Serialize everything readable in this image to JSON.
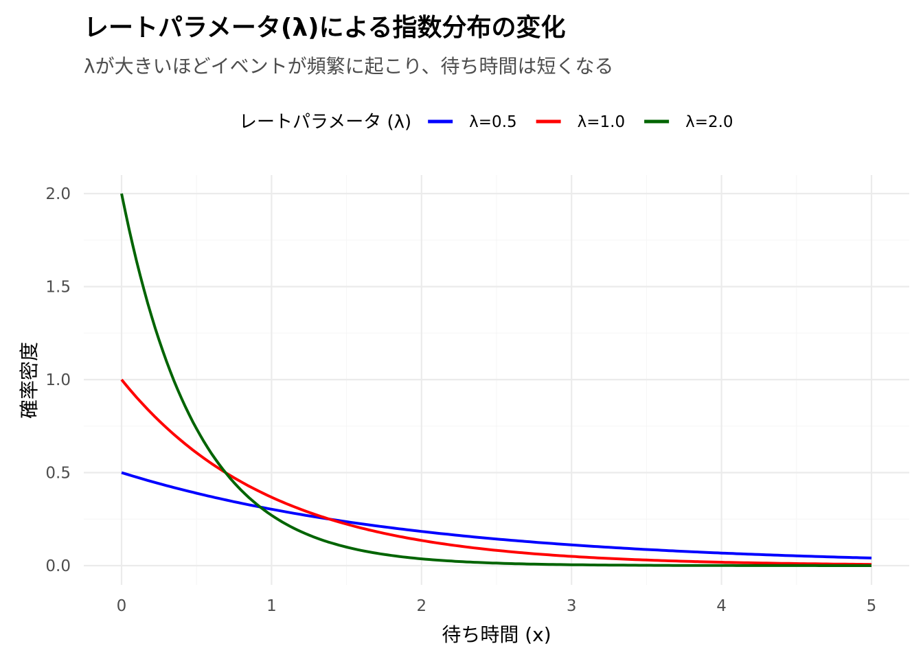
{
  "chart_data": {
    "type": "line",
    "title": "レートパラメータ(λ)による指数分布の変化",
    "subtitle": "λが大きいほどイベントが頻繁に起こり、待ち時間は短くなる",
    "xlabel": "待ち時間 (x)",
    "ylabel": "確率密度",
    "xlim": [
      0,
      5
    ],
    "ylim": [
      0,
      2.0
    ],
    "x_ticks": [
      "0",
      "1",
      "2",
      "3",
      "4",
      "5"
    ],
    "y_ticks": [
      "0.0",
      "0.5",
      "1.0",
      "1.5",
      "2.0"
    ],
    "grid": true,
    "legend": {
      "title": "レートパラメータ (λ)",
      "position": "top"
    },
    "x": [
      0,
      0.25,
      0.5,
      0.75,
      1.0,
      1.25,
      1.5,
      1.75,
      2.0,
      2.25,
      2.5,
      2.75,
      3.0,
      3.25,
      3.5,
      3.75,
      4.0,
      4.25,
      4.5,
      4.75,
      5.0
    ],
    "series": [
      {
        "name": "λ=0.5",
        "color": "#0000ff",
        "values": [
          0.5,
          0.441,
          0.389,
          0.344,
          0.303,
          0.268,
          0.236,
          0.208,
          0.184,
          0.162,
          0.143,
          0.126,
          0.112,
          0.098,
          0.087,
          0.077,
          0.068,
          0.06,
          0.053,
          0.046,
          0.041
        ]
      },
      {
        "name": "λ=1.0",
        "color": "#ff0000",
        "values": [
          1.0,
          0.779,
          0.607,
          0.472,
          0.368,
          0.287,
          0.223,
          0.174,
          0.135,
          0.105,
          0.082,
          0.064,
          0.05,
          0.039,
          0.03,
          0.024,
          0.018,
          0.014,
          0.011,
          0.009,
          0.007
        ]
      },
      {
        "name": "λ=2.0",
        "color": "#006400",
        "values": [
          2.0,
          1.213,
          0.736,
          0.446,
          0.271,
          0.164,
          0.1,
          0.06,
          0.037,
          0.022,
          0.013,
          0.008,
          0.005,
          0.003,
          0.002,
          0.001,
          0.001,
          0.0,
          0.0,
          0.0,
          0.0
        ]
      }
    ]
  }
}
